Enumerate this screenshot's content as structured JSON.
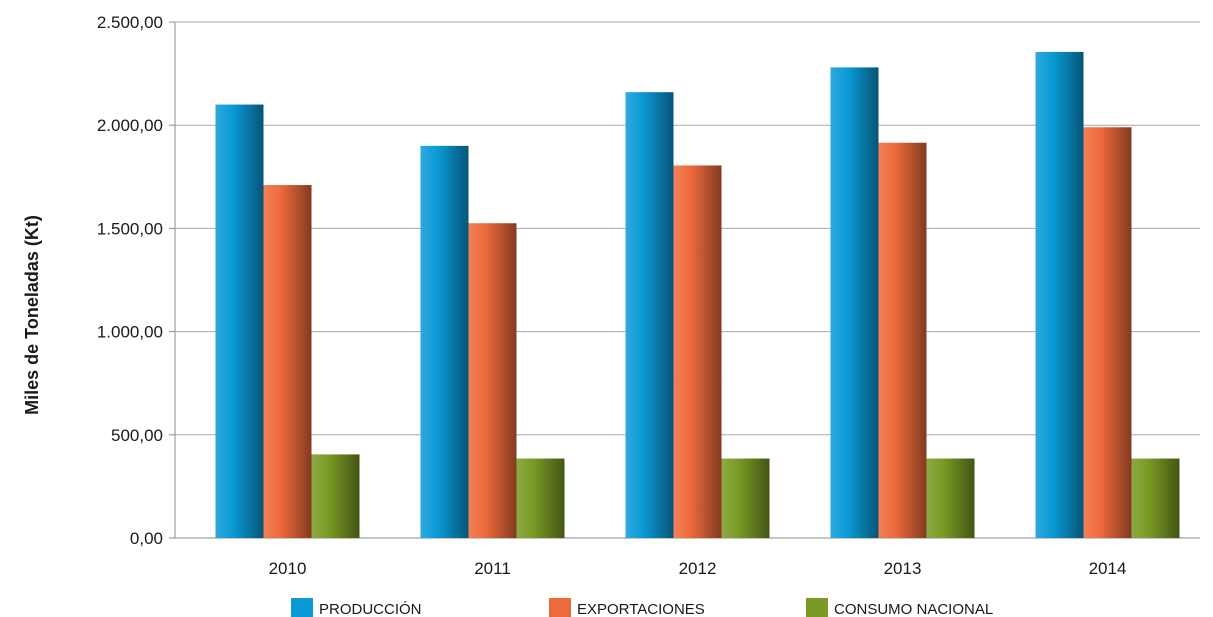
{
  "chart_data": {
    "type": "bar",
    "title": "",
    "xlabel": "",
    "ylabel": "Miles de Toneladas (Kt)",
    "categories": [
      "2010",
      "2011",
      "2012",
      "2013",
      "2014"
    ],
    "ylim": [
      0,
      2500
    ],
    "y_ticks": [
      "0,00",
      "500,00",
      "1.000,00",
      "1.500,00",
      "2.000,00",
      "2.500,00"
    ],
    "grid": true,
    "legend_position": "bottom",
    "series": [
      {
        "name": "PRODUCCIÓN",
        "color": "#0a9ad6",
        "values": [
          2100,
          1900,
          2160,
          2280,
          2355
        ]
      },
      {
        "name": "EXPORTACIONES",
        "color": "#ee6a3c",
        "values": [
          1710,
          1525,
          1805,
          1915,
          1990
        ]
      },
      {
        "name": "CONSUMO NACIONAL",
        "color": "#7a9a25",
        "values": [
          405,
          385,
          385,
          385,
          385
        ]
      }
    ]
  }
}
